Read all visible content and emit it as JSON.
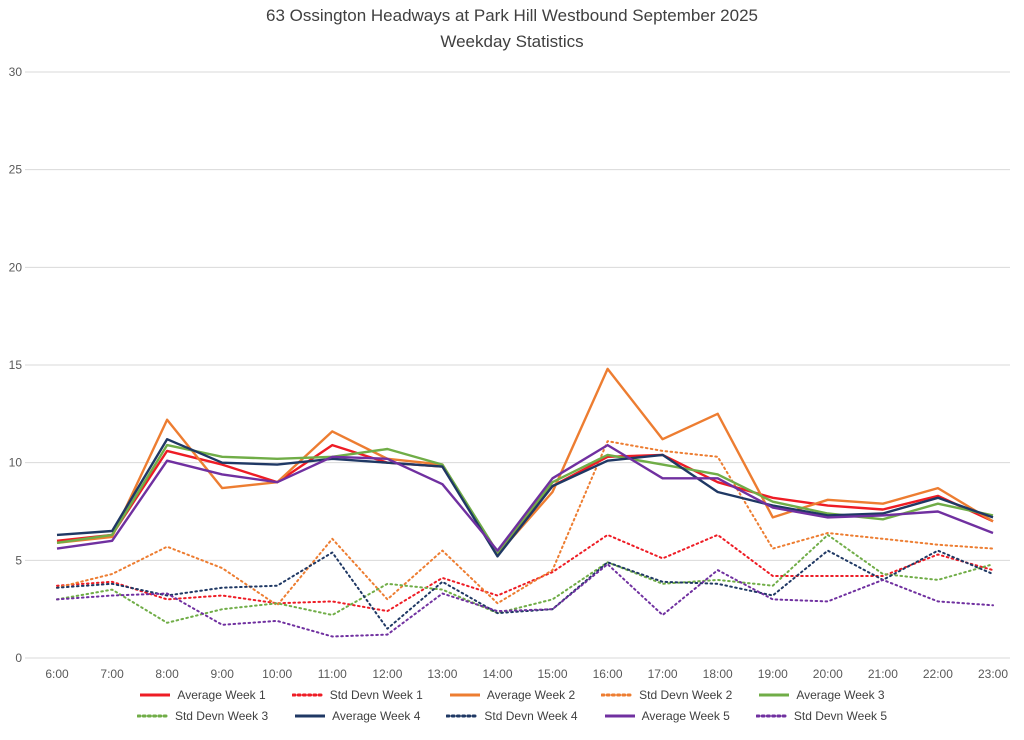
{
  "chart_data": {
    "type": "line",
    "title": "63 Ossington Headways at Park Hill Westbound September 2025",
    "subtitle": "Weekday Statistics",
    "xlabel": "",
    "ylabel": "",
    "ylim": [
      0,
      30
    ],
    "yticks": [
      0,
      5,
      10,
      15,
      20,
      25,
      30
    ],
    "grid": true,
    "legend_position": "bottom",
    "x": [
      "6:00",
      "7:00",
      "8:00",
      "9:00",
      "10:00",
      "11:00",
      "12:00",
      "13:00",
      "14:00",
      "15:00",
      "16:00",
      "17:00",
      "18:00",
      "19:00",
      "20:00",
      "21:00",
      "22:00",
      "23:00"
    ],
    "series": [
      {
        "name": "Average Week 1",
        "color": "#ee1c25",
        "style": "solid",
        "values": [
          6.0,
          6.3,
          10.6,
          9.9,
          9.0,
          10.9,
          10.0,
          9.8,
          5.4,
          8.8,
          10.3,
          10.4,
          9.0,
          8.2,
          7.8,
          7.6,
          8.3,
          7.0
        ]
      },
      {
        "name": "Std Devn Week 1",
        "color": "#ee1c25",
        "style": "dotted",
        "values": [
          3.7,
          3.9,
          3.0,
          3.2,
          2.8,
          2.9,
          2.4,
          4.1,
          3.2,
          4.4,
          6.3,
          5.1,
          6.3,
          4.2,
          4.2,
          4.2,
          5.3,
          4.5
        ]
      },
      {
        "name": "Average Week 2",
        "color": "#ed7d31",
        "style": "solid",
        "values": [
          5.9,
          6.2,
          12.2,
          8.7,
          9.0,
          11.6,
          10.2,
          9.9,
          5.3,
          8.5,
          14.8,
          11.2,
          12.5,
          7.2,
          8.1,
          7.9,
          8.7,
          7.0
        ]
      },
      {
        "name": "Std Devn Week 2",
        "color": "#ed7d31",
        "style": "dotted",
        "values": [
          3.6,
          4.3,
          5.7,
          4.6,
          2.7,
          6.1,
          3.0,
          5.5,
          2.8,
          4.5,
          11.1,
          10.6,
          10.3,
          5.6,
          6.4,
          6.1,
          5.8,
          5.6
        ]
      },
      {
        "name": "Average Week 3",
        "color": "#70ad47",
        "style": "solid",
        "values": [
          5.9,
          6.3,
          10.9,
          10.3,
          10.2,
          10.3,
          10.7,
          9.9,
          5.4,
          9.0,
          10.4,
          9.9,
          9.4,
          8.0,
          7.4,
          7.1,
          7.9,
          7.3
        ]
      },
      {
        "name": "Std Devn Week 3",
        "color": "#70ad47",
        "style": "dotted",
        "values": [
          3.0,
          3.5,
          1.8,
          2.5,
          2.8,
          2.2,
          3.8,
          3.5,
          2.3,
          3.0,
          4.9,
          3.8,
          4.0,
          3.7,
          6.3,
          4.3,
          4.0,
          4.8
        ]
      },
      {
        "name": "Average Week 4",
        "color": "#1f3864",
        "style": "solid",
        "values": [
          6.3,
          6.5,
          11.2,
          10.0,
          9.9,
          10.2,
          10.0,
          9.8,
          5.2,
          8.8,
          10.1,
          10.4,
          8.5,
          7.8,
          7.3,
          7.4,
          8.2,
          7.2
        ]
      },
      {
        "name": "Std Devn Week 4",
        "color": "#1f3864",
        "style": "dotted",
        "values": [
          3.6,
          3.8,
          3.2,
          3.6,
          3.7,
          5.4,
          1.5,
          3.9,
          2.3,
          2.5,
          4.9,
          3.9,
          3.8,
          3.2,
          5.5,
          4.0,
          5.5,
          4.3
        ]
      },
      {
        "name": "Average Week 5",
        "color": "#7030a0",
        "style": "solid",
        "values": [
          5.6,
          6.0,
          10.1,
          9.4,
          9.0,
          10.3,
          10.2,
          8.9,
          5.5,
          9.2,
          10.9,
          9.2,
          9.2,
          7.7,
          7.2,
          7.3,
          7.5,
          6.4
        ]
      },
      {
        "name": "Std Devn Week 5",
        "color": "#7030a0",
        "style": "dotted",
        "values": [
          3.0,
          3.2,
          3.3,
          1.7,
          1.9,
          1.1,
          1.2,
          3.3,
          2.4,
          2.5,
          4.8,
          2.2,
          4.5,
          3.0,
          2.9,
          4.0,
          2.9,
          2.7
        ]
      }
    ],
    "colors": {
      "week1": "#ee1c25",
      "week2": "#ed7d31",
      "week3": "#70ad47",
      "week4": "#1f3864",
      "week5": "#7030a0",
      "gridline": "#d9d9d9",
      "tick_text": "#595959",
      "title_text": "#404040"
    }
  }
}
